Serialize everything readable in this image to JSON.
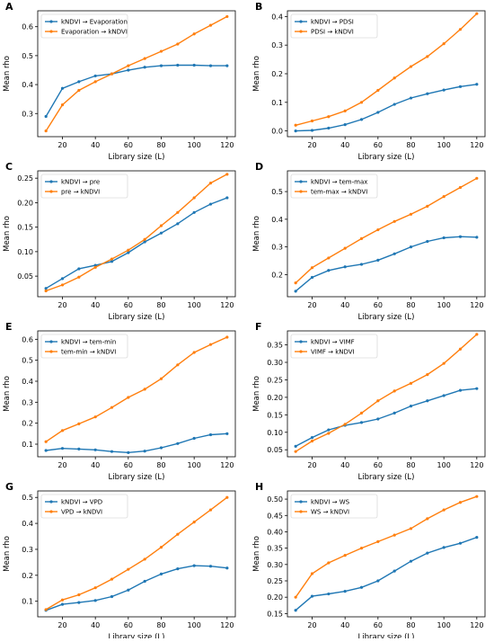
{
  "colors": {
    "series1": "#1f77b4",
    "series2": "#ff7f0e",
    "axis": "#000000"
  },
  "chart_data": [
    {
      "letter": "A",
      "type": "line",
      "xlabel": "Library size (L)",
      "ylabel": "Mean rho",
      "xlim": [
        5,
        125
      ],
      "ylim": [
        0.22,
        0.655
      ],
      "xticks": [
        20,
        40,
        60,
        80,
        100,
        120
      ],
      "yticks": [
        0.3,
        0.4,
        0.5,
        0.6
      ],
      "ytick_labels": [
        "0.3",
        "0.4",
        "0.5",
        "0.6"
      ],
      "legend_position": "top-left",
      "x": [
        10,
        20,
        30,
        40,
        50,
        60,
        70,
        80,
        90,
        100,
        110,
        120
      ],
      "series": [
        {
          "name": "kNDVI → Evaporation",
          "values": [
            0.29,
            0.387,
            0.41,
            0.43,
            0.437,
            0.45,
            0.46,
            0.465,
            0.467,
            0.467,
            0.465,
            0.465
          ]
        },
        {
          "name": "Evaporation → kNDVI",
          "values": [
            0.24,
            0.33,
            0.38,
            0.41,
            0.437,
            0.465,
            0.49,
            0.515,
            0.54,
            0.575,
            0.605,
            0.635
          ]
        }
      ]
    },
    {
      "letter": "B",
      "type": "line",
      "xlabel": "Library size (L)",
      "ylabel": "Mean rho",
      "xlim": [
        5,
        125
      ],
      "ylim": [
        -0.02,
        0.42
      ],
      "xticks": [
        20,
        40,
        60,
        80,
        100,
        120
      ],
      "yticks": [
        0.0,
        0.1,
        0.2,
        0.3,
        0.4
      ],
      "ytick_labels": [
        "0.0",
        "0.1",
        "0.2",
        "0.3",
        "0.4"
      ],
      "legend_position": "top-left",
      "x": [
        10,
        20,
        30,
        40,
        50,
        60,
        70,
        80,
        90,
        100,
        110,
        120
      ],
      "series": [
        {
          "name": "kNDVI → PDSI",
          "values": [
            0.0,
            0.002,
            0.01,
            0.022,
            0.04,
            0.065,
            0.093,
            0.115,
            0.13,
            0.143,
            0.155,
            0.163
          ]
        },
        {
          "name": "PDSI → kNDVI",
          "values": [
            0.02,
            0.035,
            0.05,
            0.07,
            0.1,
            0.142,
            0.185,
            0.225,
            0.26,
            0.305,
            0.355,
            0.41
          ]
        }
      ]
    },
    {
      "letter": "C",
      "type": "line",
      "xlabel": "Library size (L)",
      "ylabel": "Mean rho",
      "xlim": [
        5,
        125
      ],
      "ylim": [
        0.008,
        0.265
      ],
      "xticks": [
        20,
        40,
        60,
        80,
        100,
        120
      ],
      "yticks": [
        0.05,
        0.1,
        0.15,
        0.2,
        0.25
      ],
      "ytick_labels": [
        "0.05",
        "0.10",
        "0.15",
        "0.20",
        "0.25"
      ],
      "legend_position": "top-left",
      "x": [
        10,
        20,
        30,
        40,
        50,
        60,
        70,
        80,
        90,
        100,
        110,
        120
      ],
      "series": [
        {
          "name": "kNDVI → pre",
          "values": [
            0.025,
            0.045,
            0.065,
            0.072,
            0.08,
            0.098,
            0.12,
            0.138,
            0.157,
            0.18,
            0.197,
            0.21
          ]
        },
        {
          "name": "pre → kNDVI",
          "values": [
            0.02,
            0.032,
            0.048,
            0.068,
            0.085,
            0.103,
            0.125,
            0.153,
            0.18,
            0.21,
            0.24,
            0.258
          ]
        }
      ]
    },
    {
      "letter": "D",
      "type": "line",
      "xlabel": "Library size (L)",
      "ylabel": "Mean rho",
      "xlim": [
        5,
        125
      ],
      "ylim": [
        0.12,
        0.575
      ],
      "xticks": [
        20,
        40,
        60,
        80,
        100,
        120
      ],
      "yticks": [
        0.2,
        0.3,
        0.4,
        0.5
      ],
      "ytick_labels": [
        "0.2",
        "0.3",
        "0.4",
        "0.5"
      ],
      "legend_position": "top-left",
      "x": [
        10,
        20,
        30,
        40,
        50,
        60,
        70,
        80,
        90,
        100,
        110,
        120
      ],
      "series": [
        {
          "name": "kNDVI → tem-max",
          "values": [
            0.14,
            0.19,
            0.215,
            0.228,
            0.237,
            0.252,
            0.275,
            0.3,
            0.32,
            0.333,
            0.337,
            0.335
          ]
        },
        {
          "name": "tem-max → kNDVI",
          "values": [
            0.17,
            0.225,
            0.26,
            0.295,
            0.33,
            0.362,
            0.392,
            0.418,
            0.447,
            0.482,
            0.515,
            0.548
          ]
        }
      ]
    },
    {
      "letter": "E",
      "type": "line",
      "xlabel": "Library size (L)",
      "ylabel": "Mean rho",
      "xlim": [
        5,
        125
      ],
      "ylim": [
        0.04,
        0.64
      ],
      "xticks": [
        20,
        40,
        60,
        80,
        100,
        120
      ],
      "yticks": [
        0.1,
        0.2,
        0.3,
        0.4,
        0.5,
        0.6
      ],
      "ytick_labels": [
        "0.1",
        "0.2",
        "0.3",
        "0.4",
        "0.5",
        "0.6"
      ],
      "legend_position": "top-left",
      "x": [
        10,
        20,
        30,
        40,
        50,
        60,
        70,
        80,
        90,
        100,
        110,
        120
      ],
      "series": [
        {
          "name": "kNDVI → tem-min",
          "values": [
            0.07,
            0.08,
            0.077,
            0.073,
            0.065,
            0.06,
            0.067,
            0.083,
            0.103,
            0.128,
            0.145,
            0.15
          ]
        },
        {
          "name": "tem-min → kNDVI",
          "values": [
            0.112,
            0.165,
            0.197,
            0.23,
            0.275,
            0.323,
            0.362,
            0.412,
            0.478,
            0.537,
            0.575,
            0.61
          ]
        }
      ]
    },
    {
      "letter": "F",
      "type": "line",
      "xlabel": "Library size (L)",
      "ylabel": "Mean rho",
      "xlim": [
        5,
        125
      ],
      "ylim": [
        0.03,
        0.39
      ],
      "xticks": [
        20,
        40,
        60,
        80,
        100,
        120
      ],
      "yticks": [
        0.05,
        0.1,
        0.15,
        0.2,
        0.25,
        0.3,
        0.35
      ],
      "ytick_labels": [
        "0.05",
        "0.10",
        "0.15",
        "0.20",
        "0.25",
        "0.30",
        "0.35"
      ],
      "legend_position": "top-left",
      "x": [
        10,
        20,
        30,
        40,
        50,
        60,
        70,
        80,
        90,
        100,
        110,
        120
      ],
      "series": [
        {
          "name": "kNDVI → VIMF",
          "values": [
            0.06,
            0.085,
            0.107,
            0.12,
            0.128,
            0.138,
            0.155,
            0.175,
            0.19,
            0.205,
            0.22,
            0.225
          ]
        },
        {
          "name": "VIMF → kNDVI",
          "values": [
            0.045,
            0.075,
            0.097,
            0.123,
            0.155,
            0.19,
            0.218,
            0.24,
            0.265,
            0.297,
            0.338,
            0.38
          ]
        }
      ]
    },
    {
      "letter": "G",
      "type": "line",
      "xlabel": "Library size (L)",
      "ylabel": "Mean rho",
      "xlim": [
        5,
        125
      ],
      "ylim": [
        0.04,
        0.525
      ],
      "xticks": [
        20,
        40,
        60,
        80,
        100,
        120
      ],
      "yticks": [
        0.1,
        0.2,
        0.3,
        0.4,
        0.5
      ],
      "ytick_labels": [
        "0.1",
        "0.2",
        "0.3",
        "0.4",
        "0.5"
      ],
      "legend_position": "top-left",
      "x": [
        10,
        20,
        30,
        40,
        50,
        60,
        70,
        80,
        90,
        100,
        110,
        120
      ],
      "series": [
        {
          "name": "kNDVI → VPD",
          "values": [
            0.065,
            0.088,
            0.095,
            0.103,
            0.118,
            0.143,
            0.177,
            0.205,
            0.225,
            0.237,
            0.235,
            0.228
          ]
        },
        {
          "name": "VPD → kNDVI",
          "values": [
            0.068,
            0.105,
            0.125,
            0.152,
            0.185,
            0.223,
            0.262,
            0.308,
            0.358,
            0.405,
            0.452,
            0.5
          ]
        }
      ]
    },
    {
      "letter": "H",
      "type": "line",
      "xlabel": "Library size (L)",
      "ylabel": "Mean rho",
      "xlim": [
        5,
        125
      ],
      "ylim": [
        0.14,
        0.525
      ],
      "xticks": [
        20,
        40,
        60,
        80,
        100,
        120
      ],
      "yticks": [
        0.15,
        0.2,
        0.25,
        0.3,
        0.35,
        0.4,
        0.45,
        0.5
      ],
      "ytick_labels": [
        "0.15",
        "0.20",
        "0.25",
        "0.30",
        "0.35",
        "0.40",
        "0.45",
        "0.50"
      ],
      "legend_position": "top-left",
      "x": [
        10,
        20,
        30,
        40,
        50,
        60,
        70,
        80,
        90,
        100,
        110,
        120
      ],
      "series": [
        {
          "name": "kNDVI → WS",
          "values": [
            0.16,
            0.203,
            0.21,
            0.218,
            0.23,
            0.25,
            0.28,
            0.31,
            0.335,
            0.352,
            0.365,
            0.383
          ]
        },
        {
          "name": "WS → kNDVI",
          "values": [
            0.2,
            0.272,
            0.305,
            0.328,
            0.35,
            0.37,
            0.39,
            0.41,
            0.44,
            0.467,
            0.49,
            0.508
          ]
        }
      ]
    }
  ]
}
